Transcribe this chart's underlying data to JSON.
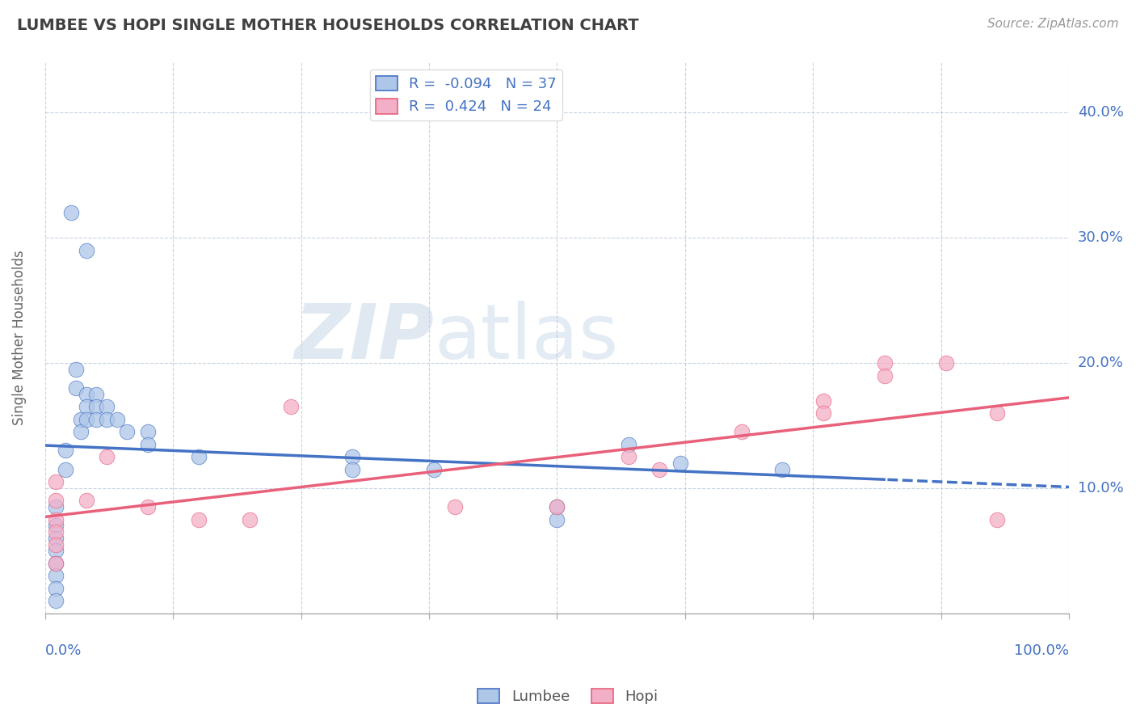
{
  "title": "LUMBEE VS HOPI SINGLE MOTHER HOUSEHOLDS CORRELATION CHART",
  "source": "Source: ZipAtlas.com",
  "ylabel": "Single Mother Households",
  "xmin": 0.0,
  "xmax": 1.0,
  "ymin": 0.0,
  "ymax": 0.44,
  "yticks": [
    0.1,
    0.2,
    0.3,
    0.4
  ],
  "ytick_labels": [
    "10.0%",
    "20.0%",
    "30.0%",
    "40.0%"
  ],
  "xticks": [
    0.0,
    0.125,
    0.25,
    0.375,
    0.5,
    0.625,
    0.75,
    0.875,
    1.0
  ],
  "lumbee_color": "#aec6e8",
  "hopi_color": "#f4afc8",
  "lumbee_line_color": "#4472c4",
  "hopi_line_color": "#e8607a",
  "lumbee_r": -0.094,
  "hopi_r": 0.424,
  "lumbee_n": 37,
  "hopi_n": 24,
  "background_color": "#ffffff",
  "grid_color": "#b8c8d8",
  "title_color": "#404040",
  "axis_label_color": "#4472c4",
  "lumbee_points": [
    [
      0.01,
      0.085
    ],
    [
      0.01,
      0.07
    ],
    [
      0.01,
      0.06
    ],
    [
      0.01,
      0.05
    ],
    [
      0.01,
      0.04
    ],
    [
      0.01,
      0.03
    ],
    [
      0.01,
      0.02
    ],
    [
      0.01,
      0.01
    ],
    [
      0.02,
      0.13
    ],
    [
      0.02,
      0.115
    ],
    [
      0.03,
      0.195
    ],
    [
      0.03,
      0.18
    ],
    [
      0.035,
      0.155
    ],
    [
      0.035,
      0.145
    ],
    [
      0.04,
      0.175
    ],
    [
      0.04,
      0.165
    ],
    [
      0.04,
      0.155
    ],
    [
      0.05,
      0.175
    ],
    [
      0.05,
      0.165
    ],
    [
      0.05,
      0.155
    ],
    [
      0.06,
      0.165
    ],
    [
      0.06,
      0.155
    ],
    [
      0.07,
      0.155
    ],
    [
      0.08,
      0.145
    ],
    [
      0.1,
      0.145
    ],
    [
      0.1,
      0.135
    ],
    [
      0.025,
      0.32
    ],
    [
      0.04,
      0.29
    ],
    [
      0.15,
      0.125
    ],
    [
      0.3,
      0.125
    ],
    [
      0.3,
      0.115
    ],
    [
      0.38,
      0.115
    ],
    [
      0.5,
      0.085
    ],
    [
      0.5,
      0.075
    ],
    [
      0.57,
      0.135
    ],
    [
      0.62,
      0.12
    ],
    [
      0.72,
      0.115
    ]
  ],
  "hopi_points": [
    [
      0.01,
      0.105
    ],
    [
      0.01,
      0.09
    ],
    [
      0.01,
      0.075
    ],
    [
      0.01,
      0.065
    ],
    [
      0.01,
      0.055
    ],
    [
      0.01,
      0.04
    ],
    [
      0.04,
      0.09
    ],
    [
      0.06,
      0.125
    ],
    [
      0.1,
      0.085
    ],
    [
      0.15,
      0.075
    ],
    [
      0.2,
      0.075
    ],
    [
      0.24,
      0.165
    ],
    [
      0.4,
      0.085
    ],
    [
      0.5,
      0.085
    ],
    [
      0.57,
      0.125
    ],
    [
      0.6,
      0.115
    ],
    [
      0.68,
      0.145
    ],
    [
      0.76,
      0.17
    ],
    [
      0.76,
      0.16
    ],
    [
      0.82,
      0.2
    ],
    [
      0.82,
      0.19
    ],
    [
      0.88,
      0.2
    ],
    [
      0.93,
      0.16
    ],
    [
      0.93,
      0.075
    ]
  ]
}
